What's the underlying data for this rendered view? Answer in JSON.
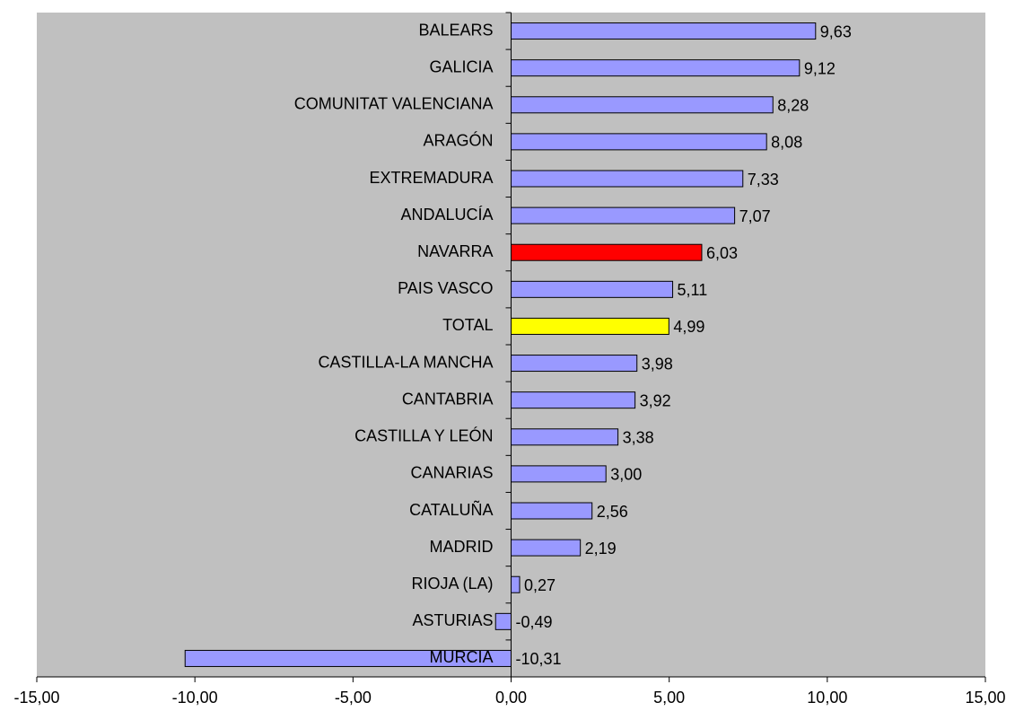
{
  "chart_data": {
    "type": "barh",
    "categories": [
      "BALEARS",
      "GALICIA",
      "COMUNITAT VALENCIANA",
      "ARAGÓN",
      "EXTREMADURA",
      "ANDALUCÍA",
      "NAVARRA",
      "PAIS VASCO",
      "TOTAL",
      "CASTILLA-LA MANCHA",
      "CANTABRIA",
      "CASTILLA Y LEÓN",
      "CANARIAS",
      "CATALUÑA",
      "MADRID",
      "RIOJA (LA)",
      "ASTURIAS",
      "MURCIA"
    ],
    "values": [
      9.63,
      9.12,
      8.28,
      8.08,
      7.33,
      7.07,
      6.03,
      5.11,
      4.99,
      3.98,
      3.92,
      3.38,
      3.0,
      2.56,
      2.19,
      0.27,
      -0.49,
      -10.31
    ],
    "value_labels": [
      "9,63",
      "9,12",
      "8,28",
      "8,08",
      "7,33",
      "7,07",
      "6,03",
      "5,11",
      "4,99",
      "3,98",
      "3,92",
      "3,38",
      "3,00",
      "2,56",
      "2,19",
      "0,27",
      "-0,49",
      "-10,31"
    ],
    "colors": [
      "#9999ff",
      "#9999ff",
      "#9999ff",
      "#9999ff",
      "#9999ff",
      "#9999ff",
      "#ff0000",
      "#9999ff",
      "#ffff00",
      "#9999ff",
      "#9999ff",
      "#9999ff",
      "#9999ff",
      "#9999ff",
      "#9999ff",
      "#9999ff",
      "#9999ff",
      "#9999ff"
    ],
    "xlim": [
      -15,
      15
    ],
    "xticks": [
      {
        "value": -15,
        "label": "-15,00"
      },
      {
        "value": -10,
        "label": "-10,00"
      },
      {
        "value": -5,
        "label": "-5,00"
      },
      {
        "value": 0,
        "label": "0,00"
      },
      {
        "value": 5,
        "label": "5,00"
      },
      {
        "value": 10,
        "label": "10,00"
      },
      {
        "value": 15,
        "label": "15,00"
      }
    ],
    "plot_background": "#c0c0c0"
  }
}
